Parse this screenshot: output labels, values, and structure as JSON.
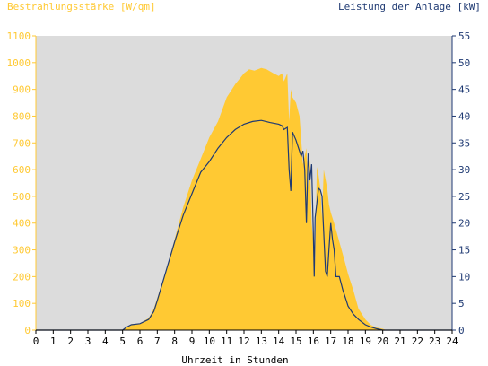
{
  "colors": {
    "irradiance": "#ffc933",
    "power": "#1f3a73",
    "plot_bg": "#dcdcdc",
    "page_bg": "#ffffff"
  },
  "chart_data": {
    "type": "area",
    "title": "",
    "left_axis_label": "Bestrahlungsstärke [W/qm]",
    "right_axis_label": "Leistung der Anlage [kW]",
    "xlabel": "Uhrzeit in Stunden",
    "xlim": [
      0,
      24
    ],
    "xticks": [
      "0",
      "1",
      "2",
      "3",
      "4",
      "5",
      "6",
      "7",
      "8",
      "9",
      "10",
      "11",
      "12",
      "13",
      "14",
      "15",
      "16",
      "17",
      "18",
      "19",
      "20",
      "21",
      "22",
      "23",
      "24"
    ],
    "ylim_left": [
      0,
      1100
    ],
    "yticks_left": [
      "0",
      "100",
      "200",
      "300",
      "400",
      "500",
      "600",
      "700",
      "800",
      "900",
      "1000",
      "1100"
    ],
    "ylim_right": [
      0,
      55
    ],
    "yticks_right": [
      "0",
      "5",
      "10",
      "15",
      "20",
      "25",
      "30",
      "35",
      "40",
      "45",
      "50",
      "55"
    ],
    "grid": false,
    "series": [
      {
        "name": "Bestrahlungsstärke [W/qm]",
        "axis": "left",
        "style": "filled-area",
        "x": [
          0,
          5,
          5.2,
          5.5,
          6.0,
          6.5,
          6.8,
          7.0,
          7.5,
          8.0,
          8.5,
          9.0,
          9.5,
          10.0,
          10.5,
          11.0,
          11.5,
          12.0,
          12.3,
          12.6,
          13.0,
          13.3,
          13.7,
          14.0,
          14.2,
          14.3,
          14.5,
          14.6,
          14.7,
          14.8,
          15.0,
          15.2,
          15.4,
          15.6,
          15.7,
          15.8,
          15.9,
          16.0,
          16.1,
          16.2,
          16.3,
          16.4,
          16.5,
          16.6,
          16.8,
          16.9,
          17.0,
          17.2,
          17.5,
          17.8,
          18.0,
          18.3,
          18.6,
          19.0,
          19.3,
          19.6,
          20.0,
          20.2,
          24
        ],
        "values": [
          0,
          0,
          10,
          22,
          25,
          45,
          80,
          120,
          220,
          340,
          460,
          560,
          640,
          720,
          780,
          870,
          920,
          960,
          975,
          970,
          980,
          975,
          960,
          950,
          960,
          930,
          960,
          780,
          900,
          870,
          850,
          800,
          620,
          680,
          530,
          640,
          400,
          330,
          260,
          610,
          580,
          530,
          420,
          600,
          530,
          470,
          440,
          400,
          330,
          260,
          210,
          150,
          80,
          40,
          20,
          10,
          5,
          0,
          0
        ]
      },
      {
        "name": "Leistung der Anlage [kW]",
        "axis": "right",
        "style": "line",
        "x": [
          0,
          5,
          5.2,
          5.5,
          6.0,
          6.5,
          6.8,
          7.0,
          7.5,
          8.0,
          8.5,
          9.0,
          9.5,
          10.0,
          10.5,
          11.0,
          11.5,
          12.0,
          12.5,
          13.0,
          13.5,
          14.0,
          14.2,
          14.3,
          14.5,
          14.6,
          14.7,
          14.8,
          15.0,
          15.1,
          15.3,
          15.4,
          15.5,
          15.6,
          15.7,
          15.8,
          15.9,
          16.0,
          16.05,
          16.1,
          16.3,
          16.4,
          16.5,
          16.7,
          16.8,
          16.9,
          17.0,
          17.1,
          17.2,
          17.3,
          17.5,
          17.7,
          17.9,
          18.0,
          18.3,
          18.6,
          19.0,
          19.3,
          19.6,
          20.0,
          20.2,
          24
        ],
        "values": [
          0,
          0,
          0.5,
          1,
          1.2,
          2,
          3.5,
          5.5,
          11,
          16.5,
          21.5,
          25.5,
          29.5,
          31.5,
          34,
          36,
          37.5,
          38.5,
          39,
          39.2,
          38.8,
          38.5,
          38.2,
          37.5,
          37.9,
          30,
          26,
          37,
          35.5,
          34.5,
          32.5,
          33.5,
          30,
          20,
          33,
          28,
          31,
          18,
          10,
          21,
          26.5,
          26.2,
          25,
          11,
          10,
          15,
          20,
          17,
          15,
          10,
          10,
          7.5,
          5.5,
          4.5,
          3,
          2,
          1,
          0.6,
          0.3,
          0,
          0,
          0
        ]
      }
    ]
  }
}
